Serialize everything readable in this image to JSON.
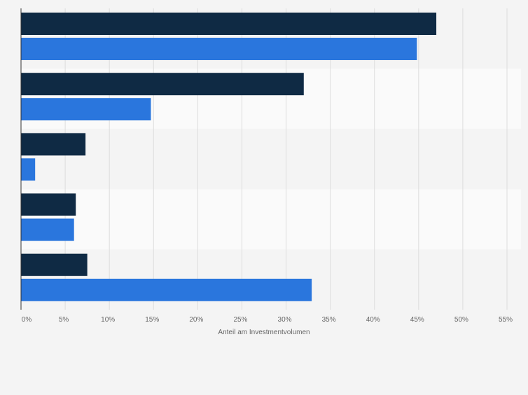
{
  "chart_data": {
    "type": "bar",
    "orientation": "horizontal",
    "categories": [
      "",
      "",
      "",
      "",
      ""
    ],
    "series": [
      {
        "color": "#0f2a44",
        "values": [
          47.0,
          32.0,
          7.3,
          6.2,
          7.5
        ]
      },
      {
        "color": "#2a76dd",
        "values": [
          44.8,
          14.7,
          1.6,
          6.0,
          32.9
        ]
      }
    ],
    "xlabel": "Anteil am Investmentvolumen",
    "ylabel": "",
    "xlim": [
      0,
      55
    ],
    "x_ticks": [
      "0%",
      "5%",
      "10%",
      "15%",
      "20%",
      "25%",
      "30%",
      "35%",
      "40%",
      "45%",
      "50%",
      "55%"
    ],
    "grid": true,
    "legend": "none"
  },
  "colors": {
    "background": "#f4f4f4",
    "band_light": "#fafafa",
    "band_dark": "#f4f4f4",
    "gridline": "#dddddd",
    "axis": "#333333",
    "tick_text": "#666666"
  }
}
